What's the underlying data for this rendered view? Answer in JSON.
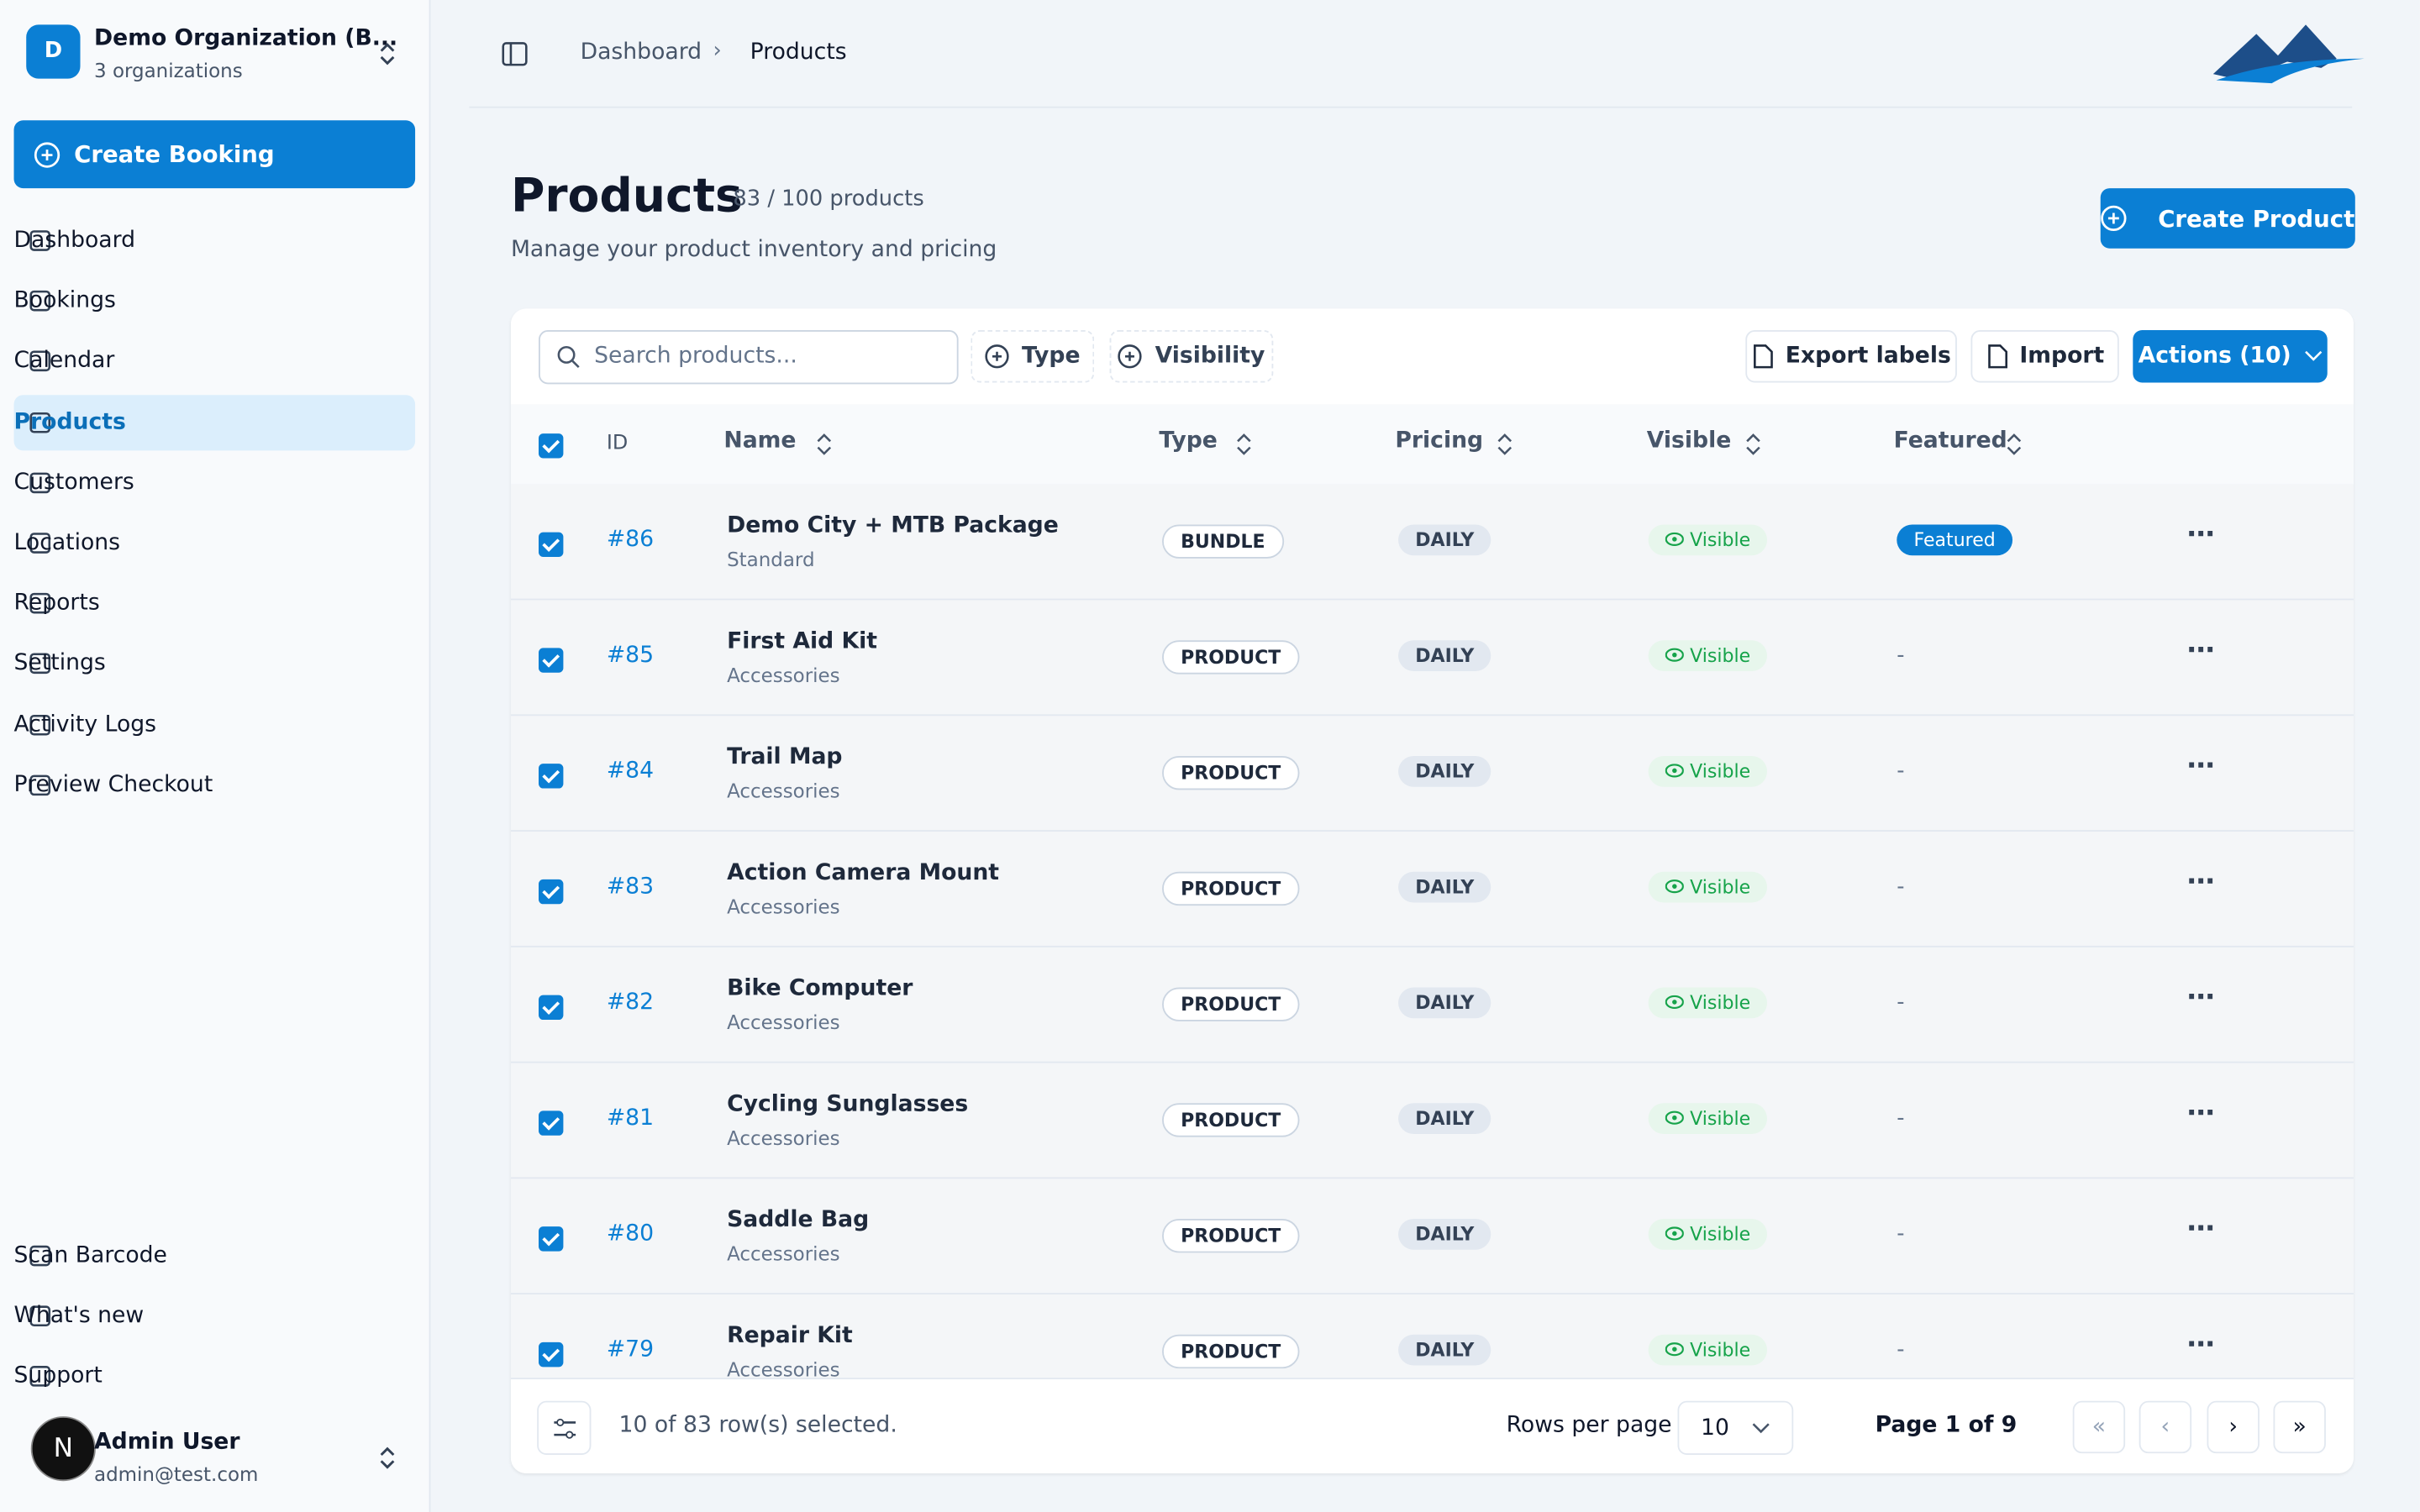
{
  "org": {
    "avatar": "D",
    "name": "Demo Organization (B...",
    "sub": "3 organizations"
  },
  "create_booking": "Create Booking",
  "nav": [
    "Dashboard",
    "Bookings",
    "Calendar",
    "Products",
    "Customers",
    "Locations",
    "Reports",
    "Settings",
    "Activity Logs",
    "Preview Checkout"
  ],
  "bottom_nav": [
    "Scan Barcode",
    "What's new",
    "Support"
  ],
  "user": {
    "avatar": "N",
    "name": "Admin User",
    "email": "admin@test.com"
  },
  "breadcrumb": [
    "Dashboard",
    "Products"
  ],
  "header": {
    "title": "Products",
    "count": "83 / 100 products",
    "subtitle": "Manage your product inventory and pricing",
    "button": "Create Product"
  },
  "toolbar": {
    "search_placeholder": "Search products...",
    "filters": [
      "Type",
      "Visibility"
    ],
    "buttons": [
      "Export labels",
      "Import",
      "Actions (10)"
    ]
  },
  "table": {
    "columns": [
      "ID",
      "Name",
      "Type",
      "Pricing",
      "Visible",
      "Featured"
    ],
    "rows": [
      {
        "id": "#86",
        "name": "Demo City + MTB Package",
        "category": "Standard",
        "type": "BUNDLE",
        "pricing": "DAILY",
        "visible": "Visible",
        "featured": "Featured"
      },
      {
        "id": "#85",
        "name": "First Aid Kit",
        "category": "Accessories",
        "type": "PRODUCT",
        "pricing": "DAILY",
        "visible": "Visible",
        "featured": "-"
      },
      {
        "id": "#84",
        "name": "Trail Map",
        "category": "Accessories",
        "type": "PRODUCT",
        "pricing": "DAILY",
        "visible": "Visible",
        "featured": "-"
      },
      {
        "id": "#83",
        "name": "Action Camera Mount",
        "category": "Accessories",
        "type": "PRODUCT",
        "pricing": "DAILY",
        "visible": "Visible",
        "featured": "-"
      },
      {
        "id": "#82",
        "name": "Bike Computer",
        "category": "Accessories",
        "type": "PRODUCT",
        "pricing": "DAILY",
        "visible": "Visible",
        "featured": "-"
      },
      {
        "id": "#81",
        "name": "Cycling Sunglasses",
        "category": "Accessories",
        "type": "PRODUCT",
        "pricing": "DAILY",
        "visible": "Visible",
        "featured": "-"
      },
      {
        "id": "#80",
        "name": "Saddle Bag",
        "category": "Accessories",
        "type": "PRODUCT",
        "pricing": "DAILY",
        "visible": "Visible",
        "featured": "-"
      },
      {
        "id": "#79",
        "name": "Repair Kit",
        "category": "Accessories",
        "type": "PRODUCT",
        "pricing": "DAILY",
        "visible": "Visible",
        "featured": "-"
      }
    ]
  },
  "footer": {
    "selected": "10 of 83 row(s) selected.",
    "rows_per_page_label": "Rows per page",
    "rows_per_page": "10",
    "page": "Page 1 of 9"
  }
}
